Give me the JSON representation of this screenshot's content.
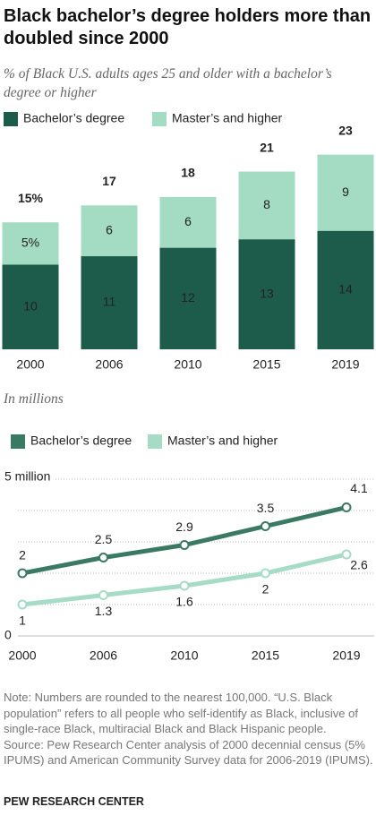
{
  "chart_data": [
    {
      "type": "bar",
      "stacked": true,
      "title": "Black bachelor’s degree holders more than doubled since 2000",
      "subtitle": "% of Black U.S. adults ages 25 and older with a bachelor’s degree or higher",
      "categories": [
        "2000",
        "2006",
        "2010",
        "2015",
        "2019"
      ],
      "series": [
        {
          "name": "Bachelor’s degree",
          "color": "#1d5c4a",
          "values": [
            10,
            11,
            12,
            13,
            14
          ]
        },
        {
          "name": "Master’s and higher",
          "color": "#a3dbc3",
          "values": [
            5,
            6,
            6,
            8,
            9
          ],
          "value_labels": [
            "5%",
            "6",
            "6",
            "8",
            "9"
          ]
        }
      ],
      "totals": [
        15,
        17,
        18,
        21,
        23
      ],
      "total_labels": [
        "15%",
        "17",
        "18",
        "21",
        "23"
      ]
    },
    {
      "type": "line",
      "subtitle": "In millions",
      "categories": [
        "2000",
        "2006",
        "2010",
        "2015",
        "2019"
      ],
      "series": [
        {
          "name": "Bachelor’s degree",
          "color": "#3b7a62",
          "values": [
            2,
            2.5,
            2.9,
            3.5,
            4.1
          ]
        },
        {
          "name": "Master’s and higher",
          "color": "#a6dcc5",
          "values": [
            1,
            1.3,
            1.6,
            2,
            2.6
          ]
        }
      ],
      "ylim": [
        0,
        5
      ],
      "yticks": [
        0,
        {
          "value": 5,
          "label": "5 million"
        }
      ],
      "minor_grid": [
        1,
        2,
        3,
        4
      ],
      "grid": true
    }
  ],
  "note": "Note: Numbers are rounded to the nearest 100,000. “U.S. Black population” refers to all people who self-identify as Black, inclusive of single-race Black, multiracial Black and Black Hispanic people.",
  "source": "Source: Pew Research Center analysis of 2000 decennial census (5% IPUMS) and American Community Survey data for 2006-2019 (IPUMS).",
  "credit": "PEW RESEARCH CENTER"
}
